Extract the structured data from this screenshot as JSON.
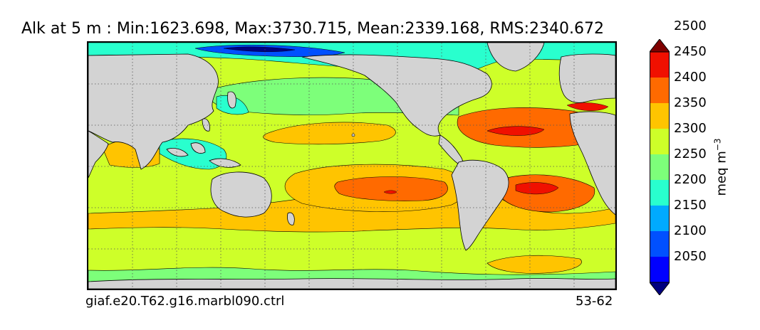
{
  "title": "Alk at 5 m : Min:1623.698, Max:3730.715, Mean:2339.168, RMS:2340.672",
  "case_name": "giaf.e20.T62.g16.marbl090.ctrl",
  "years": "53-62",
  "colorbar": {
    "units_main": "meq m",
    "units_exp": "−3",
    "ticks": [
      "2050",
      "2100",
      "2150",
      "2200",
      "2250",
      "2300",
      "2350",
      "2400",
      "2450",
      "2500"
    ],
    "levels": [
      {
        "lo": null,
        "hi": 2050,
        "color": "#00007f"
      },
      {
        "lo": 2050,
        "hi": 2100,
        "color": "#0000ff"
      },
      {
        "lo": 2100,
        "hi": 2150,
        "color": "#0050ff"
      },
      {
        "lo": 2150,
        "hi": 2200,
        "color": "#00aaff"
      },
      {
        "lo": 2200,
        "hi": 2250,
        "color": "#29ffce"
      },
      {
        "lo": 2250,
        "hi": 2300,
        "color": "#7dff7a"
      },
      {
        "lo": 2300,
        "hi": 2350,
        "color": "#ceff29"
      },
      {
        "lo": 2350,
        "hi": 2400,
        "color": "#ffc400"
      },
      {
        "lo": 2400,
        "hi": 2450,
        "color": "#ff6a00"
      },
      {
        "lo": 2450,
        "hi": 2500,
        "color": "#f01000"
      },
      {
        "lo": 2500,
        "hi": null,
        "color": "#7f0000"
      }
    ]
  },
  "map": {
    "projection": "equirectangular, Pacific-centred",
    "land_color": "#d3d3d3",
    "grid": "dotted"
  }
}
